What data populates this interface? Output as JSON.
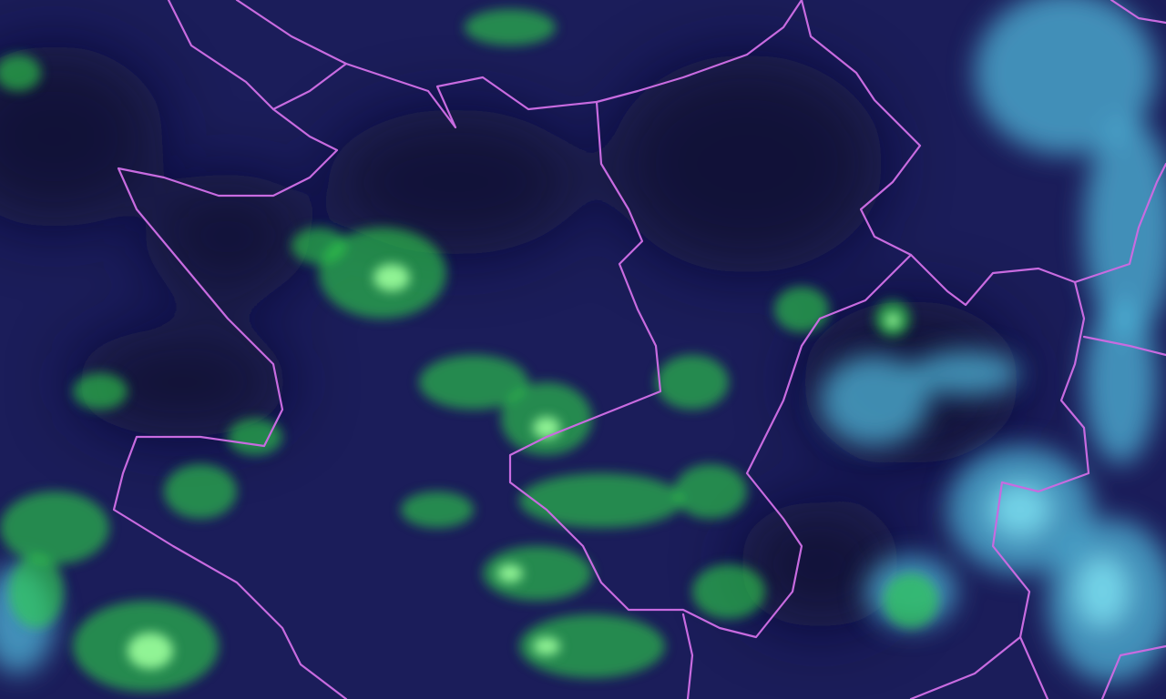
{
  "map": {
    "layer": "satellite-imagery",
    "colors": {
      "background": "#1b1d5a",
      "dark": "#0e0f2e",
      "vegetation": "#2fd34a",
      "vegetation_bright": "#9cff9c",
      "cloud": "#4fb6d8",
      "border": "#c86be0"
    }
  }
}
